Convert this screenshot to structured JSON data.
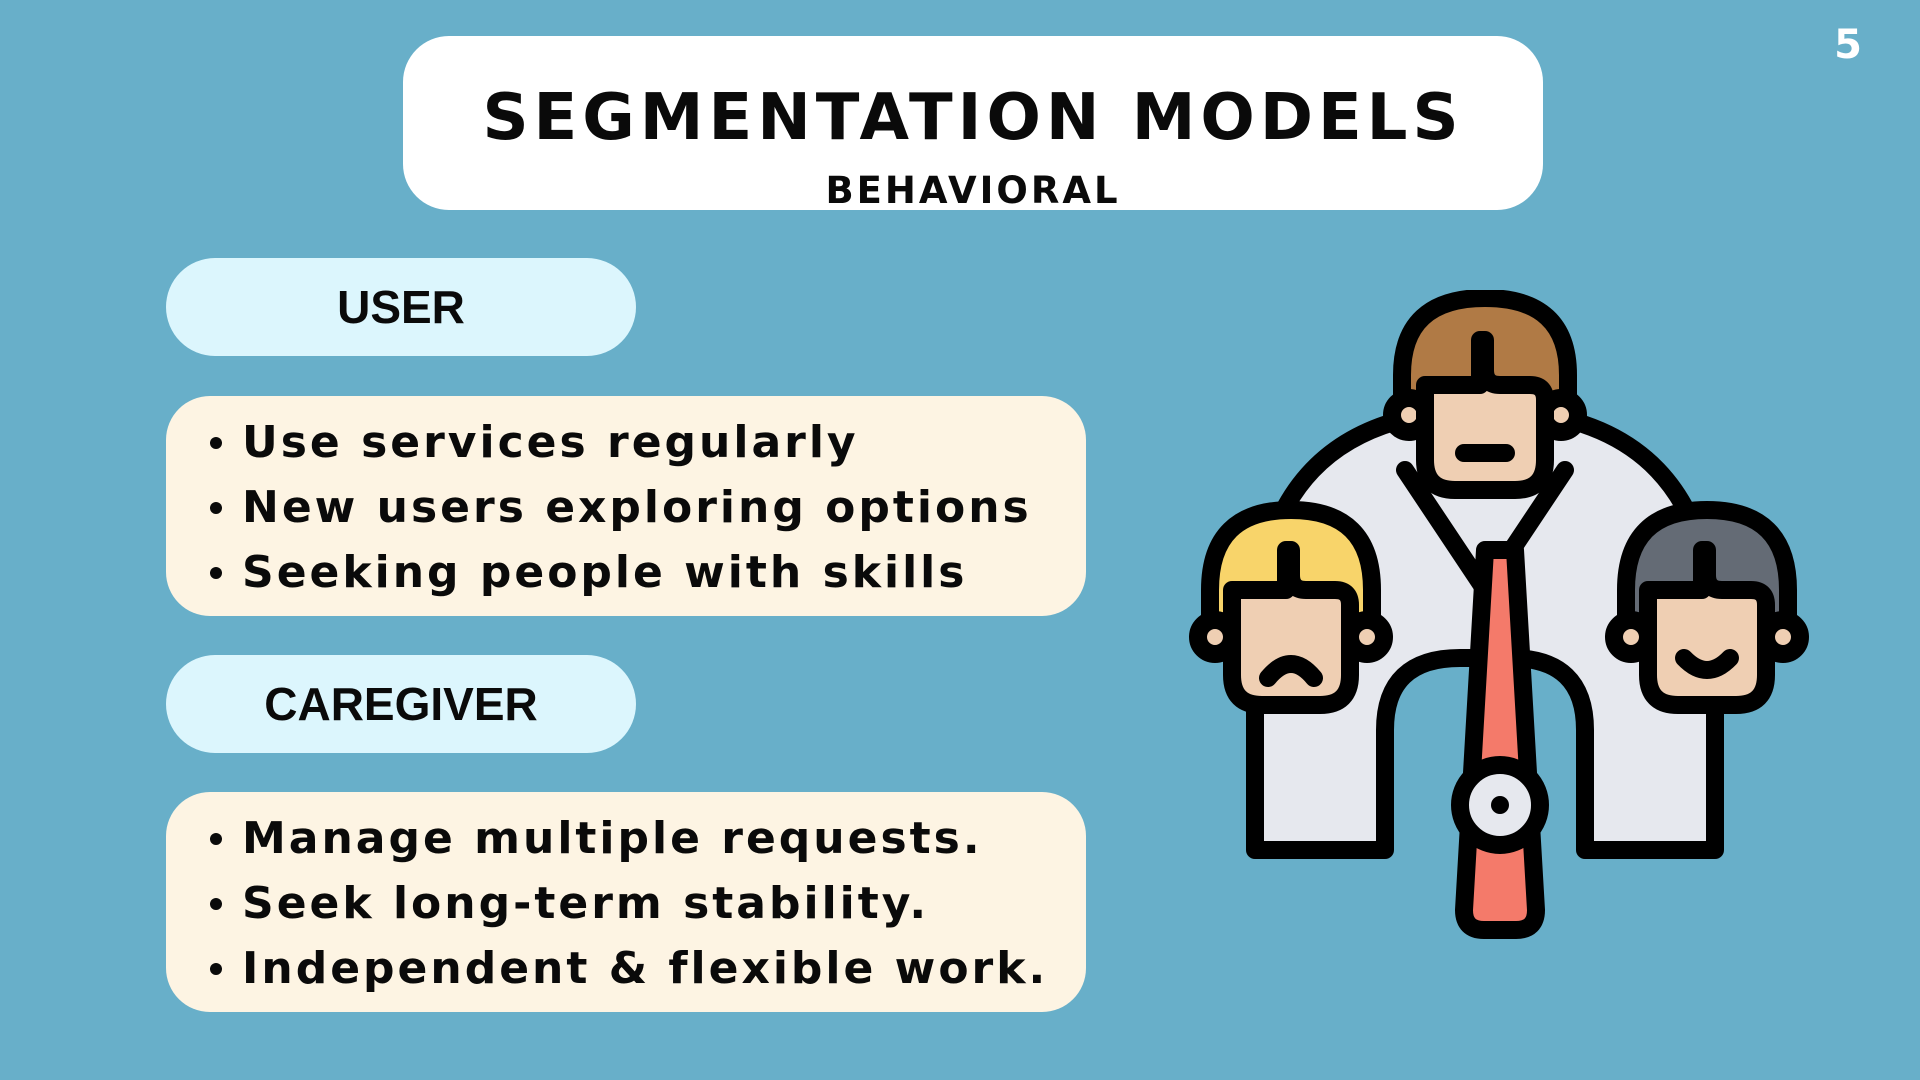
{
  "page_number": "5",
  "header": {
    "title": "SEGMENTATION MODELS",
    "subtitle": "BEHAVIORAL"
  },
  "segments": {
    "user": {
      "label": "USER",
      "items": [
        "Use services regularly",
        "New users exploring options",
        "Seeking people with skills"
      ]
    },
    "caregiver": {
      "label": "CAREGIVER",
      "items": [
        "Manage multiple requests.",
        "Seek long-term stability.",
        "Independent & flexible work."
      ]
    }
  },
  "illustration": {
    "icon": "segmentation-people-gauge-icon"
  },
  "colors": {
    "background": "#68afc9",
    "title_box": "#ffffff",
    "pill": "#dcf6fd",
    "list_box": "#fdf4e3",
    "hair_top": "#b07a45",
    "hair_left": "#f8d46a",
    "hair_right": "#646b75",
    "skin": "#efcfb3",
    "needle": "#f47a6a",
    "shirt": "#e6e8ee"
  }
}
